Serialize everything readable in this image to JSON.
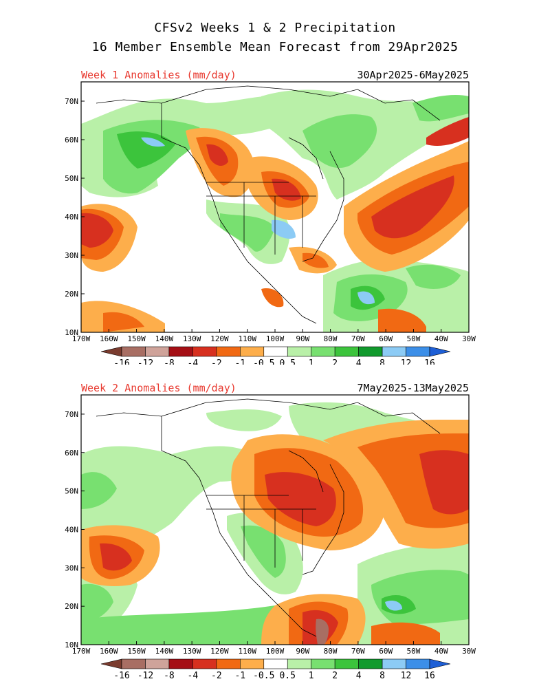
{
  "title_line1": "CFSv2 Weeks 1 & 2 Precipitation",
  "title_line2": "16 Member Ensemble Mean Forecast from 29Apr2025",
  "panels": [
    {
      "label": "Week 1 Anomalies (mm/day)",
      "dates": "30Apr2025-6May2025"
    },
    {
      "label": "Week 2 Anomalies (mm/day)",
      "dates": "7May2025-13May2025"
    }
  ],
  "axes": {
    "lat_ticks": [
      "70N",
      "60N",
      "50N",
      "40N",
      "30N",
      "20N",
      "10N"
    ],
    "lon_ticks": [
      "170W",
      "160W",
      "150W",
      "140W",
      "130W",
      "120W",
      "110W",
      "100W",
      "90W",
      "80W",
      "70W",
      "60W",
      "50W",
      "40W",
      "30W"
    ],
    "lat_range": [
      10,
      75
    ],
    "lon_range": [
      -170,
      -30
    ]
  },
  "colorbar": {
    "labels": [
      "-16",
      "-12",
      "-8",
      "-4",
      "-2",
      "-1",
      "-0.5",
      "0.5",
      "1",
      "2",
      "4",
      "8",
      "12",
      "16"
    ],
    "colors": [
      "#7a3b2e",
      "#a86e63",
      "#cfa39a",
      "#a50f15",
      "#d7301f",
      "#f16913",
      "#fdae4b",
      "#ffffff",
      "#b9f0a8",
      "#78e070",
      "#3cc43c",
      "#119a2d",
      "#8ccbf5",
      "#3c8fe8",
      "#1e5fd6"
    ]
  },
  "map_colors": {
    "dry_strong": "#d7301f",
    "dry_moderate": "#f16913",
    "dry_light": "#fdae4b",
    "wet_light": "#b9f0a8",
    "wet_moderate": "#78e070",
    "wet_strong": "#3cc43c",
    "wet_very": "#119a2d",
    "wet_extreme": "#8ccbf5",
    "dry_extreme": "#a86e63"
  }
}
